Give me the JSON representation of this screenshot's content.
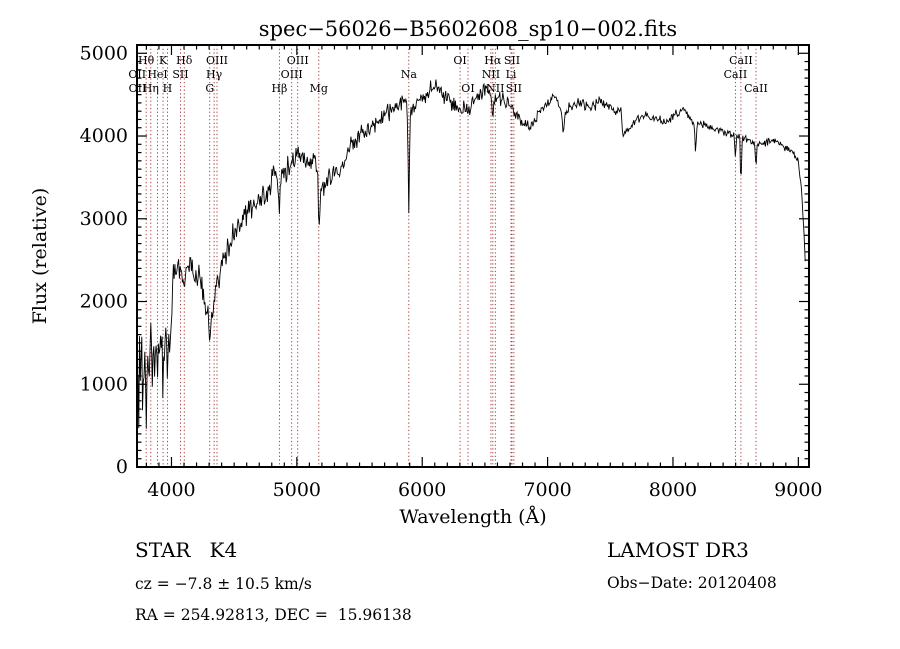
{
  "title": "spec−56026−B5602608_sp10−002.fits",
  "colors": {
    "background": "#ffffff",
    "axis": "#000000",
    "spectrum": "#000000",
    "line_marker": "#a03232",
    "text": "#000000"
  },
  "annotations": {
    "class_label": "STAR   K4",
    "survey": "LAMOST DR3",
    "cz": "cz = −7.8 ± 10.5 km/s",
    "obs_date": "Obs−Date: 20120408",
    "coords": "RA = 254.92813, DEC =  15.96138"
  },
  "chart_data": {
    "type": "line",
    "title": "spec−56026−B5602608_sp10−002.fits",
    "xlabel": "Wavelength (Å)",
    "ylabel": "Flux (relative)",
    "xlim": [
      3725,
      9085
    ],
    "ylim": [
      0,
      5100
    ],
    "x_ticks": [
      4000,
      5000,
      6000,
      7000,
      8000,
      9000
    ],
    "y_ticks": [
      0,
      1000,
      2000,
      3000,
      4000,
      5000
    ],
    "x_minor_step": 100,
    "y_minor_step": 100,
    "grid": false,
    "legend": false,
    "spectral_lines": [
      {
        "label": "OII",
        "wavelength": 3727,
        "row": 2
      },
      {
        "label": "OII",
        "wavelength": 3729,
        "row": 3
      },
      {
        "label": "Hθ",
        "wavelength": 3798,
        "row": 1
      },
      {
        "label": "Hη",
        "wavelength": 3835,
        "row": 3
      },
      {
        "label": "HeI",
        "wavelength": 3889,
        "row": 2
      },
      {
        "label": "K",
        "wavelength": 3933,
        "row": 1
      },
      {
        "label": "H",
        "wavelength": 3968,
        "row": 3
      },
      {
        "label": "SII",
        "wavelength": 4072,
        "row": 2
      },
      {
        "label": "Hδ",
        "wavelength": 4102,
        "row": 1
      },
      {
        "label": "G",
        "wavelength": 4305,
        "row": 3
      },
      {
        "label": "Hγ",
        "wavelength": 4340,
        "row": 2
      },
      {
        "label": "OIII",
        "wavelength": 4363,
        "row": 1
      },
      {
        "label": "Hβ",
        "wavelength": 4861,
        "row": 3
      },
      {
        "label": "OIII",
        "wavelength": 4959,
        "row": 2
      },
      {
        "label": "OIII",
        "wavelength": 5007,
        "row": 1
      },
      {
        "label": "Mg",
        "wavelength": 5175,
        "row": 3
      },
      {
        "label": "Na",
        "wavelength": 5893,
        "row": 2
      },
      {
        "label": "OI",
        "wavelength": 6302,
        "row": 1
      },
      {
        "label": "OI",
        "wavelength": 6365,
        "row": 3
      },
      {
        "label": "NII",
        "wavelength": 6548,
        "row": 2
      },
      {
        "label": "Hα",
        "wavelength": 6563,
        "row": 1
      },
      {
        "label": "NII",
        "wavelength": 6583,
        "row": 3
      },
      {
        "label": "Li",
        "wavelength": 6708,
        "row": 2
      },
      {
        "label": "SII",
        "wavelength": 6716,
        "row": 1
      },
      {
        "label": "SII",
        "wavelength": 6731,
        "row": 3
      },
      {
        "label": "CaII",
        "wavelength": 8498,
        "row": 2
      },
      {
        "label": "CaII",
        "wavelength": 8542,
        "row": 1
      },
      {
        "label": "CaII",
        "wavelength": 8662,
        "row": 3
      }
    ],
    "spectrum_envelope": [
      [
        3727,
        80
      ],
      [
        3732,
        1100
      ],
      [
        3738,
        550
      ],
      [
        3745,
        1250
      ],
      [
        3752,
        750
      ],
      [
        3762,
        1400
      ],
      [
        3772,
        850
      ],
      [
        3785,
        1450
      ],
      [
        3798,
        650
      ],
      [
        3810,
        1250
      ],
      [
        3822,
        1050
      ],
      [
        3836,
        1450
      ],
      [
        3850,
        1200
      ],
      [
        3868,
        1400
      ],
      [
        3889,
        1250
      ],
      [
        3905,
        1500
      ],
      [
        3925,
        1500
      ],
      [
        3933,
        900
      ],
      [
        3942,
        1450
      ],
      [
        3960,
        1550
      ],
      [
        3968,
        1050
      ],
      [
        3978,
        1550
      ],
      [
        3990,
        1700
      ],
      [
        4000,
        1850
      ],
      [
        4010,
        2350
      ],
      [
        4045,
        2420
      ],
      [
        4070,
        2320
      ],
      [
        4102,
        2260
      ],
      [
        4130,
        2460
      ],
      [
        4170,
        2420
      ],
      [
        4210,
        2320
      ],
      [
        4250,
        2120
      ],
      [
        4290,
        1800
      ],
      [
        4305,
        1620
      ],
      [
        4318,
        1780
      ],
      [
        4340,
        2020
      ],
      [
        4365,
        2220
      ],
      [
        4400,
        2460
      ],
      [
        4440,
        2620
      ],
      [
        4480,
        2760
      ],
      [
        4530,
        2920
      ],
      [
        4580,
        3020
      ],
      [
        4640,
        3160
      ],
      [
        4700,
        3220
      ],
      [
        4760,
        3320
      ],
      [
        4820,
        3520
      ],
      [
        4845,
        3500
      ],
      [
        4861,
        3100
      ],
      [
        4875,
        3520
      ],
      [
        4910,
        3580
      ],
      [
        4960,
        3680
      ],
      [
        5010,
        3760
      ],
      [
        5080,
        3700
      ],
      [
        5140,
        3760
      ],
      [
        5165,
        3700
      ],
      [
        5175,
        2780
      ],
      [
        5188,
        3300
      ],
      [
        5215,
        3380
      ],
      [
        5260,
        3520
      ],
      [
        5320,
        3560
      ],
      [
        5380,
        3720
      ],
      [
        5450,
        3920
      ],
      [
        5530,
        4060
      ],
      [
        5610,
        4120
      ],
      [
        5700,
        4260
      ],
      [
        5790,
        4360
      ],
      [
        5860,
        4400
      ],
      [
        5880,
        4350
      ],
      [
        5893,
        3060
      ],
      [
        5904,
        4280
      ],
      [
        5980,
        4400
      ],
      [
        6050,
        4560
      ],
      [
        6120,
        4600
      ],
      [
        6200,
        4420
      ],
      [
        6270,
        4360
      ],
      [
        6302,
        4280
      ],
      [
        6340,
        4380
      ],
      [
        6365,
        4330
      ],
      [
        6440,
        4500
      ],
      [
        6500,
        4560
      ],
      [
        6550,
        4480
      ],
      [
        6563,
        4230
      ],
      [
        6578,
        4450
      ],
      [
        6640,
        4450
      ],
      [
        6700,
        4380
      ],
      [
        6720,
        4330
      ],
      [
        6740,
        4260
      ],
      [
        6800,
        4160
      ],
      [
        6860,
        4110
      ],
      [
        6920,
        4260
      ],
      [
        6990,
        4410
      ],
      [
        7060,
        4460
      ],
      [
        7110,
        4300
      ],
      [
        7125,
        4060
      ],
      [
        7145,
        4300
      ],
      [
        7180,
        4360
      ],
      [
        7260,
        4420
      ],
      [
        7340,
        4360
      ],
      [
        7420,
        4410
      ],
      [
        7500,
        4360
      ],
      [
        7560,
        4310
      ],
      [
        7585,
        4300
      ],
      [
        7600,
        3980
      ],
      [
        7618,
        4030
      ],
      [
        7650,
        4090
      ],
      [
        7710,
        4210
      ],
      [
        7780,
        4260
      ],
      [
        7860,
        4210
      ],
      [
        7940,
        4160
      ],
      [
        8020,
        4260
      ],
      [
        8100,
        4300
      ],
      [
        8170,
        4120
      ],
      [
        8180,
        3800
      ],
      [
        8192,
        4120
      ],
      [
        8250,
        4140
      ],
      [
        8330,
        4090
      ],
      [
        8400,
        4060
      ],
      [
        8460,
        4020
      ],
      [
        8490,
        4000
      ],
      [
        8498,
        3680
      ],
      [
        8508,
        4020
      ],
      [
        8532,
        4000
      ],
      [
        8542,
        3380
      ],
      [
        8552,
        3980
      ],
      [
        8600,
        3950
      ],
      [
        8652,
        3900
      ],
      [
        8662,
        3580
      ],
      [
        8672,
        3900
      ],
      [
        8730,
        3920
      ],
      [
        8790,
        3950
      ],
      [
        8850,
        3900
      ],
      [
        8910,
        3850
      ],
      [
        8960,
        3780
      ],
      [
        9000,
        3700
      ],
      [
        9020,
        3450
      ],
      [
        9040,
        2950
      ],
      [
        9055,
        2500
      ]
    ],
    "noise_segments": [
      [
        3727,
        3800,
        420
      ],
      [
        3800,
        4000,
        330
      ],
      [
        4000,
        4250,
        190
      ],
      [
        4250,
        4450,
        210
      ],
      [
        4450,
        4750,
        170
      ],
      [
        4750,
        5200,
        170
      ],
      [
        5200,
        5900,
        130
      ],
      [
        5900,
        6650,
        120
      ],
      [
        6650,
        7600,
        85
      ],
      [
        7600,
        8450,
        65
      ],
      [
        8450,
        9060,
        55
      ]
    ],
    "sample_step": 6
  }
}
